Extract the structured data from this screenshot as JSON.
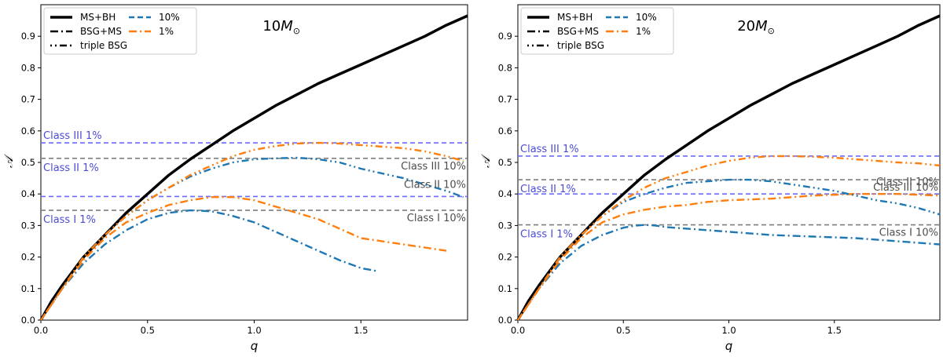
{
  "chart_data": [
    {
      "type": "line",
      "title": "10M_⊙",
      "title_main": "10",
      "title_italic": "M",
      "title_sub": "⊙",
      "xlabel": "q",
      "ylabel": "𝒜",
      "xlim": [
        0,
        2.0
      ],
      "ylim": [
        0,
        1.0
      ],
      "xticks": [
        0.0,
        0.5,
        1.0,
        1.5
      ],
      "xtick_labels": [
        "0.0",
        "0.5",
        "1.0",
        "1.5"
      ],
      "yticks": [
        0.0,
        0.1,
        0.2,
        0.3,
        0.4,
        0.5,
        0.6,
        0.7,
        0.8,
        0.9
      ],
      "ytick_labels": [
        "0.0",
        "0.1",
        "0.2",
        "0.3",
        "0.4",
        "0.5",
        "0.6",
        "0.7",
        "0.8",
        "0.9"
      ],
      "legend": {
        "placement": "top-left",
        "entries": [
          {
            "label": "MS+BH",
            "style": "solid",
            "color": "#000000"
          },
          {
            "label": "BSG+MS",
            "style": "dashdot",
            "color": "#000000"
          },
          {
            "label": "triple BSG",
            "style": "dashdotdot",
            "color": "#000000"
          },
          {
            "label": "10%",
            "style": "dash",
            "color": "#1f77b4"
          },
          {
            "label": "1%",
            "style": "dashdot",
            "color": "#ff7f0e"
          }
        ]
      },
      "series": [
        {
          "name": "MS+BH",
          "color": "#000000",
          "style": "solid",
          "x": [
            0,
            0.05,
            0.1,
            0.2,
            0.3,
            0.4,
            0.5,
            0.6,
            0.7,
            0.8,
            0.9,
            1.0,
            1.1,
            1.2,
            1.3,
            1.4,
            1.5,
            1.6,
            1.7,
            1.8,
            1.9,
            2.0
          ],
          "y": [
            0,
            0.06,
            0.11,
            0.2,
            0.27,
            0.34,
            0.4,
            0.46,
            0.51,
            0.555,
            0.6,
            0.64,
            0.68,
            0.715,
            0.75,
            0.78,
            0.81,
            0.84,
            0.87,
            0.9,
            0.935,
            0.965
          ]
        },
        {
          "name": "BSG+MS 10%",
          "color": "#1f77b4",
          "style": "dashdot",
          "x": [
            0,
            0.1,
            0.2,
            0.3,
            0.4,
            0.5,
            0.6,
            0.7,
            0.8,
            0.9,
            1.0,
            1.1,
            1.2,
            1.3,
            1.4,
            1.5,
            1.58
          ],
          "y": [
            0,
            0.1,
            0.18,
            0.24,
            0.285,
            0.32,
            0.34,
            0.348,
            0.345,
            0.33,
            0.31,
            0.28,
            0.25,
            0.22,
            0.19,
            0.165,
            0.155
          ]
        },
        {
          "name": "BSG+MS 1%",
          "color": "#ff7f0e",
          "style": "dashdot",
          "x": [
            0,
            0.1,
            0.2,
            0.3,
            0.4,
            0.5,
            0.6,
            0.7,
            0.8,
            0.9,
            1.0,
            1.1,
            1.2,
            1.3,
            1.4,
            1.5,
            1.6,
            1.7,
            1.8,
            1.9
          ],
          "y": [
            0,
            0.1,
            0.19,
            0.26,
            0.31,
            0.34,
            0.365,
            0.38,
            0.39,
            0.39,
            0.38,
            0.36,
            0.34,
            0.32,
            0.29,
            0.26,
            0.25,
            0.24,
            0.23,
            0.22
          ]
        },
        {
          "name": "triple BSG 10%",
          "color": "#1f77b4",
          "style": "dashdotdot",
          "x": [
            0,
            0.2,
            0.3,
            0.4,
            0.5,
            0.6,
            0.7,
            0.8,
            0.9,
            1.0,
            1.1,
            1.2,
            1.3,
            1.4,
            1.5,
            1.6,
            1.7,
            1.8,
            1.9,
            1.98
          ],
          "y": [
            0,
            0.2,
            0.27,
            0.33,
            0.38,
            0.42,
            0.455,
            0.48,
            0.5,
            0.51,
            0.513,
            0.515,
            0.51,
            0.5,
            0.48,
            0.465,
            0.45,
            0.43,
            0.41,
            0.39
          ]
        },
        {
          "name": "triple BSG 1%",
          "color": "#ff7f0e",
          "style": "dashdotdot",
          "x": [
            0,
            0.2,
            0.3,
            0.4,
            0.5,
            0.6,
            0.7,
            0.8,
            0.9,
            1.0,
            1.1,
            1.2,
            1.3,
            1.4,
            1.5,
            1.6,
            1.7,
            1.8,
            1.9,
            1.98
          ],
          "y": [
            0,
            0.2,
            0.27,
            0.33,
            0.38,
            0.42,
            0.46,
            0.49,
            0.52,
            0.54,
            0.552,
            0.56,
            0.562,
            0.56,
            0.555,
            0.55,
            0.545,
            0.535,
            0.52,
            0.505
          ]
        }
      ],
      "hlines": [
        {
          "y": 0.562,
          "color": "#6b6bff",
          "style": "dashed",
          "label": "Class III 1%",
          "label_color": "#4b4bd6",
          "label_side": "left"
        },
        {
          "y": 0.513,
          "color": "#7f7f7f",
          "style": "dashed",
          "label": "Class III 10%",
          "label_color": "#4d4d4d",
          "label_side": "right"
        },
        {
          "y": 0.513,
          "color": "#7f7f7f",
          "style": "none",
          "label": "Class II 1%",
          "label_color": "#4b4bd6",
          "label_side": "left"
        },
        {
          "y": 0.392,
          "color": "#6b6bff",
          "style": "dashed",
          "label": "Class II 10%",
          "label_color": "#4d4d4d",
          "label_side": "right"
        },
        {
          "y": 0.348,
          "color": "#7f7f7f",
          "style": "dashed",
          "label": "Class I 1%",
          "label_color": "#4b4bd6",
          "label_side": "left"
        },
        {
          "y": 0.348,
          "color": "#7f7f7f",
          "style": "none",
          "label": "Class I 10%",
          "label_color": "#4d4d4d",
          "label_side": "right"
        }
      ]
    },
    {
      "type": "line",
      "title": "20M_⊙",
      "title_main": "20",
      "title_italic": "M",
      "title_sub": "⊙",
      "xlabel": "q",
      "ylabel": "𝒜",
      "xlim": [
        0,
        2.0
      ],
      "ylim": [
        0,
        1.0
      ],
      "xticks": [
        0.0,
        0.5,
        1.0,
        1.5
      ],
      "xtick_labels": [
        "0.0",
        "0.5",
        "1.0",
        "1.5"
      ],
      "yticks": [
        0.0,
        0.1,
        0.2,
        0.3,
        0.4,
        0.5,
        0.6,
        0.7,
        0.8,
        0.9
      ],
      "ytick_labels": [
        "0.0",
        "0.1",
        "0.2",
        "0.3",
        "0.4",
        "0.5",
        "0.6",
        "0.7",
        "0.8",
        "0.9"
      ],
      "legend": {
        "placement": "top-left",
        "entries": [
          {
            "label": "MS+BH",
            "style": "solid",
            "color": "#000000"
          },
          {
            "label": "BSG+MS",
            "style": "dashdot",
            "color": "#000000"
          },
          {
            "label": "triple BSG",
            "style": "dashdotdot",
            "color": "#000000"
          },
          {
            "label": "10%",
            "style": "dash",
            "color": "#1f77b4"
          },
          {
            "label": "1%",
            "style": "dashdot",
            "color": "#ff7f0e"
          }
        ]
      },
      "series": [
        {
          "name": "MS+BH",
          "color": "#000000",
          "style": "solid",
          "x": [
            0,
            0.05,
            0.1,
            0.2,
            0.3,
            0.4,
            0.5,
            0.6,
            0.7,
            0.8,
            0.9,
            1.0,
            1.1,
            1.2,
            1.3,
            1.4,
            1.5,
            1.6,
            1.7,
            1.8,
            1.9,
            2.0
          ],
          "y": [
            0,
            0.06,
            0.11,
            0.2,
            0.27,
            0.34,
            0.4,
            0.46,
            0.51,
            0.555,
            0.6,
            0.64,
            0.68,
            0.715,
            0.75,
            0.78,
            0.81,
            0.84,
            0.87,
            0.9,
            0.935,
            0.965
          ]
        },
        {
          "name": "BSG+MS 10%",
          "color": "#1f77b4",
          "style": "dashdot",
          "x": [
            0,
            0.1,
            0.2,
            0.3,
            0.4,
            0.5,
            0.55,
            0.6,
            0.65,
            0.7,
            0.8,
            0.9,
            1.0,
            1.2,
            1.4,
            1.6,
            1.8,
            2.0
          ],
          "y": [
            0,
            0.1,
            0.18,
            0.235,
            0.27,
            0.293,
            0.299,
            0.302,
            0.3,
            0.295,
            0.29,
            0.285,
            0.28,
            0.27,
            0.265,
            0.26,
            0.25,
            0.24
          ]
        },
        {
          "name": "BSG+MS 1%",
          "color": "#ff7f0e",
          "style": "dashdot",
          "x": [
            0,
            0.1,
            0.2,
            0.3,
            0.4,
            0.5,
            0.6,
            0.7,
            0.8,
            0.9,
            1.0,
            1.2,
            1.4,
            1.6,
            1.8,
            2.0
          ],
          "y": [
            0,
            0.1,
            0.19,
            0.26,
            0.31,
            0.335,
            0.35,
            0.36,
            0.365,
            0.375,
            0.38,
            0.385,
            0.395,
            0.4,
            0.4,
            0.395
          ]
        },
        {
          "name": "triple BSG 10%",
          "color": "#1f77b4",
          "style": "dashdotdot",
          "x": [
            0,
            0.2,
            0.3,
            0.4,
            0.5,
            0.6,
            0.7,
            0.8,
            0.9,
            1.0,
            1.1,
            1.2,
            1.3,
            1.4,
            1.5,
            1.6,
            1.7,
            1.8,
            1.9,
            2.0
          ],
          "y": [
            0,
            0.2,
            0.27,
            0.33,
            0.375,
            0.4,
            0.42,
            0.435,
            0.44,
            0.445,
            0.445,
            0.44,
            0.43,
            0.42,
            0.41,
            0.395,
            0.38,
            0.37,
            0.355,
            0.335
          ]
        },
        {
          "name": "triple BSG 1%",
          "color": "#ff7f0e",
          "style": "dashdotdot",
          "x": [
            0,
            0.2,
            0.3,
            0.4,
            0.5,
            0.6,
            0.7,
            0.8,
            0.9,
            1.0,
            1.1,
            1.2,
            1.3,
            1.4,
            1.5,
            1.6,
            1.7,
            1.8,
            1.9,
            2.0
          ],
          "y": [
            0,
            0.2,
            0.27,
            0.33,
            0.38,
            0.42,
            0.45,
            0.47,
            0.49,
            0.505,
            0.515,
            0.52,
            0.52,
            0.518,
            0.515,
            0.51,
            0.505,
            0.5,
            0.497,
            0.49
          ]
        }
      ],
      "hlines": [
        {
          "y": 0.52,
          "color": "#6b6bff",
          "style": "dashed",
          "label": "Class III 1%",
          "label_color": "#4b4bd6",
          "label_side": "left"
        },
        {
          "y": 0.445,
          "color": "#7f7f7f",
          "style": "dashed",
          "label": "Class III 10%",
          "label_color": "#4d4d4d",
          "label_side": "right"
        },
        {
          "y": 0.445,
          "color": "#7f7f7f",
          "style": "none",
          "label": "Class II 1%",
          "label_color": "#4b4bd6",
          "label_side": "left"
        },
        {
          "y": 0.4,
          "color": "#6b6bff",
          "style": "dashed",
          "label": "Class II 10%",
          "label_color": "#4d4d4d",
          "label_side": "right"
        },
        {
          "y": 0.302,
          "color": "#7f7f7f",
          "style": "dashed",
          "label": "Class I 1%",
          "label_color": "#4b4bd6",
          "label_side": "left"
        },
        {
          "y": 0.302,
          "color": "#7f7f7f",
          "style": "none",
          "label": "Class I 10%",
          "label_color": "#4d4d4d",
          "label_side": "right"
        }
      ]
    }
  ]
}
